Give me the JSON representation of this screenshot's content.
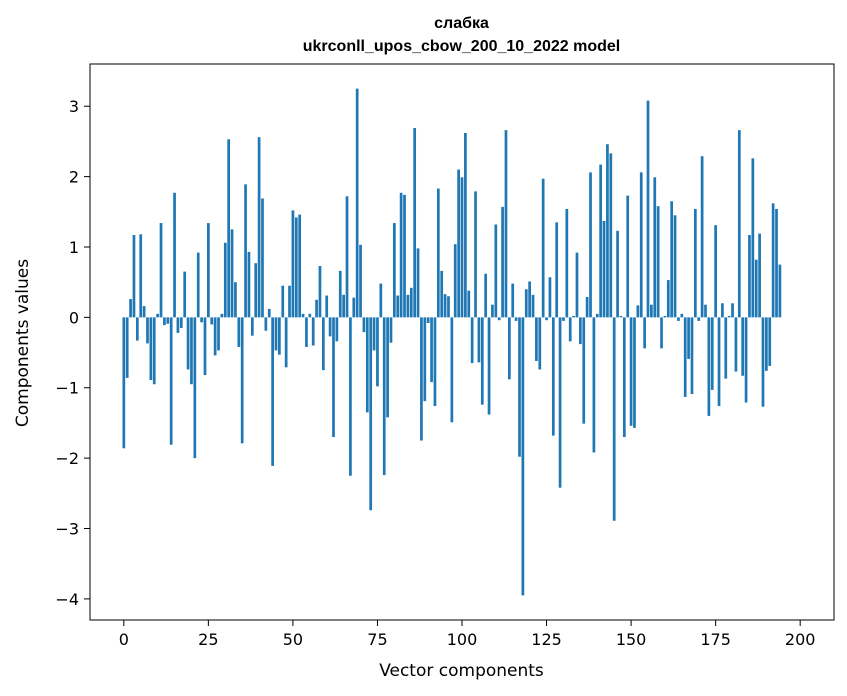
{
  "chart_data": {
    "type": "bar",
    "title": "слабка",
    "subtitle": "ukrconll_upos_cbow_200_10_2022 model",
    "xlabel": "Vector components",
    "ylabel": "Components values",
    "xlim": [
      -10,
      210
    ],
    "ylim": [
      -4.3,
      3.6
    ],
    "xticks": [
      0,
      25,
      50,
      75,
      100,
      125,
      150,
      175,
      200
    ],
    "yticks": [
      -4,
      -3,
      -2,
      -1,
      0,
      1,
      2,
      3
    ],
    "xtick_labels": [
      "0",
      "25",
      "50",
      "75",
      "100",
      "125",
      "150",
      "175",
      "200"
    ],
    "ytick_labels": [
      "−4",
      "−3",
      "−2",
      "−1",
      "0",
      "1",
      "2",
      "3"
    ],
    "bar_color": "#1f77b4",
    "grid": false,
    "values": [
      -1.86,
      -0.86,
      0.26,
      1.17,
      -0.33,
      1.18,
      0.16,
      -0.37,
      -0.89,
      -0.95,
      0.05,
      1.34,
      -0.11,
      -0.09,
      -1.81,
      1.77,
      -0.22,
      -0.15,
      0.65,
      -0.74,
      -0.95,
      -2.0,
      0.92,
      -0.07,
      -0.82,
      1.34,
      -0.1,
      -0.54,
      -0.47,
      0.05,
      1.06,
      2.53,
      1.25,
      0.5,
      -0.42,
      -1.79,
      1.89,
      0.93,
      -0.26,
      0.77,
      2.56,
      1.69,
      -0.19,
      0.12,
      -2.11,
      -0.47,
      -0.53,
      0.45,
      -0.71,
      0.45,
      1.52,
      1.42,
      1.46,
      0.05,
      -0.42,
      0.05,
      -0.4,
      0.25,
      0.73,
      -0.75,
      0.31,
      -0.27,
      -1.7,
      -0.34,
      0.66,
      0.32,
      1.72,
      -2.25,
      0.28,
      3.25,
      1.03,
      -0.21,
      -1.35,
      -2.74,
      -0.47,
      -0.98,
      0.48,
      -2.24,
      -1.42,
      -0.36,
      1.34,
      0.31,
      1.77,
      1.74,
      0.32,
      0.42,
      2.69,
      0.98,
      -1.75,
      -1.19,
      -0.08,
      -0.92,
      -1.26,
      1.83,
      0.66,
      0.33,
      0.3,
      -1.49,
      1.04,
      2.1,
      1.99,
      2.62,
      0.38,
      -0.65,
      1.79,
      -0.64,
      -1.24,
      0.62,
      -1.38,
      0.18,
      1.32,
      -0.04,
      1.57,
      2.66,
      -0.88,
      0.48,
      -0.05,
      -1.98,
      -3.95,
      0.4,
      0.51,
      0.32,
      -0.62,
      -0.74,
      1.97,
      -0.04,
      0.57,
      -1.68,
      1.35,
      -2.42,
      -0.05,
      1.54,
      -0.34,
      0.02,
      0.92,
      -0.38,
      -1.51,
      0.29,
      2.06,
      -1.92,
      0.05,
      2.17,
      1.37,
      2.46,
      2.33,
      -2.89,
      1.23,
      0.02,
      -1.7,
      1.73,
      -1.54,
      -1.57,
      0.17,
      2.06,
      -0.44,
      3.08,
      0.18,
      1.99,
      1.58,
      -0.44,
      0.02,
      0.53,
      1.65,
      1.45,
      -0.05,
      0.05,
      -1.13,
      -0.59,
      -1.09,
      1.54,
      -0.05,
      2.29,
      0.18,
      -1.4,
      -1.03,
      1.31,
      -1.26,
      0.2,
      -0.87,
      0.02,
      0.2,
      -0.77,
      2.66,
      -0.83,
      -1.21,
      1.17,
      2.26,
      0.82,
      1.19,
      -1.27,
      -0.76,
      -0.69,
      1.62,
      1.54,
      0.75
    ]
  }
}
